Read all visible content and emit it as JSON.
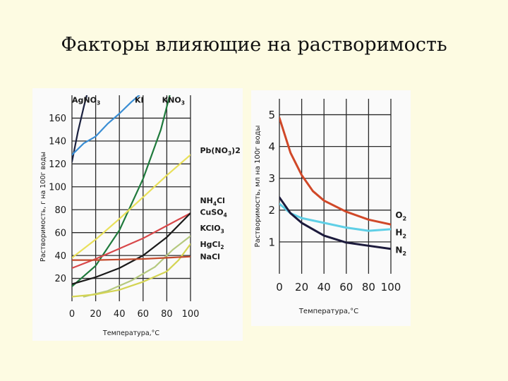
{
  "slide": {
    "title": "Факторы влияющие на растворимость"
  },
  "chart_data": [
    {
      "type": "line",
      "ylabel": "Растворимость, г на 100г воды",
      "xlabel": "Температура,°C",
      "x_ticks": [
        "0",
        "20",
        "40",
        "60",
        "80",
        "100"
      ],
      "y_ticks": [
        "20",
        "40",
        "60",
        "80",
        "100",
        "120",
        "140",
        "160"
      ],
      "xlim": [
        0,
        100
      ],
      "ylim": [
        0,
        180
      ],
      "grid": true,
      "series": [
        {
          "name": "AgNO3",
          "label_main": "AgNO",
          "label_sub": "3",
          "label_post": "",
          "label_x": 0,
          "label_y": 176,
          "color": "#1c2240",
          "points": [
            [
              0,
              122
            ],
            [
              5,
              148
            ],
            [
              10,
              170
            ],
            [
              15,
              190
            ]
          ]
        },
        {
          "name": "KI",
          "label_main": "KI",
          "label_sub": "",
          "label_post": "",
          "label_x": 53,
          "label_y": 176,
          "color": "#3a8ed4",
          "points": [
            [
              0,
              128
            ],
            [
              10,
              138
            ],
            [
              20,
              144
            ],
            [
              30,
              155
            ],
            [
              40,
              164
            ],
            [
              50,
              174
            ],
            [
              60,
              183
            ]
          ]
        },
        {
          "name": "KNO3",
          "label_main": "KNO",
          "label_sub": "3",
          "label_post": "",
          "label_x": 76,
          "label_y": 176,
          "color": "#1f7a3c",
          "points": [
            [
              0,
              13
            ],
            [
              20,
              31
            ],
            [
              40,
              62
            ],
            [
              60,
              107
            ],
            [
              75,
              150
            ],
            [
              80,
              170
            ],
            [
              85,
              190
            ]
          ]
        },
        {
          "name": "Pb(NO3)2",
          "label_main": "Pb(NO",
          "label_sub": "3",
          "label_post": ")2",
          "label_x": 108,
          "label_y": 132,
          "color": "#e9e05a",
          "points": [
            [
              0,
              38
            ],
            [
              20,
              54
            ],
            [
              40,
              72
            ],
            [
              60,
              91
            ],
            [
              80,
              110
            ],
            [
              100,
              128
            ]
          ]
        },
        {
          "name": "NH4Cl",
          "label_main": "NH",
          "label_sub": "4",
          "label_post": "Cl",
          "label_x": 108,
          "label_y": 88,
          "color": "#d8484a",
          "points": [
            [
              0,
              29
            ],
            [
              20,
              37
            ],
            [
              40,
              46
            ],
            [
              60,
              55
            ],
            [
              80,
              66
            ],
            [
              100,
              77
            ]
          ]
        },
        {
          "name": "CuSO4",
          "label_main": "CuSO",
          "label_sub": "4",
          "label_post": "",
          "label_x": 108,
          "label_y": 78,
          "color": "#1a1a1a",
          "points": [
            [
              0,
              15
            ],
            [
              20,
              21
            ],
            [
              40,
              29
            ],
            [
              60,
              40
            ],
            [
              80,
              56
            ],
            [
              100,
              77
            ]
          ]
        },
        {
          "name": "KClO3",
          "label_main": "KClO",
          "label_sub": "3",
          "label_post": "",
          "label_x": 108,
          "label_y": 64,
          "color": "#b5c97e",
          "points": [
            [
              10,
              4
            ],
            [
              30,
              9
            ],
            [
              50,
              18
            ],
            [
              70,
              30
            ],
            [
              85,
              45
            ],
            [
              100,
              57
            ]
          ]
        },
        {
          "name": "HgCl2",
          "label_main": "HgCl",
          "label_sub": "2",
          "label_post": "",
          "label_x": 108,
          "label_y": 50,
          "color": "#d4d452",
          "points": [
            [
              0,
              4
            ],
            [
              20,
              6
            ],
            [
              40,
              10
            ],
            [
              60,
              17
            ],
            [
              80,
              26
            ],
            [
              90,
              36
            ],
            [
              100,
              50
            ]
          ]
        },
        {
          "name": "NaCl",
          "label_main": "NaCl",
          "label_sub": "",
          "label_post": "",
          "label_x": 108,
          "label_y": 39,
          "color": "#c44a2c",
          "points": [
            [
              0,
              36
            ],
            [
              20,
              36
            ],
            [
              40,
              36.5
            ],
            [
              60,
              37
            ],
            [
              80,
              38
            ],
            [
              100,
              39
            ]
          ]
        }
      ]
    },
    {
      "type": "line",
      "ylabel": "Растворимость, мл на 100г воды",
      "xlabel": "Температура,°C",
      "x_ticks": [
        "0",
        "20",
        "40",
        "60",
        "80",
        "100"
      ],
      "y_ticks": [
        "1",
        "2",
        "3",
        "4",
        "5"
      ],
      "xlim": [
        0,
        100
      ],
      "ylim": [
        0,
        5.5
      ],
      "grid": true,
      "series": [
        {
          "name": "O2",
          "label_main": "O",
          "label_sub": "2",
          "label_post": "",
          "label_x": 104,
          "label_y": 1.85,
          "color": "#d04828",
          "points": [
            [
              0,
              4.9
            ],
            [
              10,
              3.8
            ],
            [
              20,
              3.1
            ],
            [
              30,
              2.6
            ],
            [
              40,
              2.3
            ],
            [
              60,
              1.95
            ],
            [
              80,
              1.7
            ],
            [
              100,
              1.55
            ]
          ]
        },
        {
          "name": "H2",
          "label_main": "H",
          "label_sub": "2",
          "label_post": "",
          "label_x": 104,
          "label_y": 1.3,
          "color": "#5fcfe6",
          "points": [
            [
              0,
              2.2
            ],
            [
              10,
              1.9
            ],
            [
              20,
              1.75
            ],
            [
              40,
              1.6
            ],
            [
              60,
              1.45
            ],
            [
              80,
              1.35
            ],
            [
              100,
              1.4
            ]
          ]
        },
        {
          "name": "N2",
          "label_main": "N",
          "label_sub": "2",
          "label_post": "",
          "label_x": 104,
          "label_y": 0.75,
          "color": "#1c1a3c",
          "points": [
            [
              0,
              2.4
            ],
            [
              10,
              1.9
            ],
            [
              20,
              1.6
            ],
            [
              30,
              1.4
            ],
            [
              40,
              1.2
            ],
            [
              60,
              0.98
            ],
            [
              80,
              0.88
            ],
            [
              100,
              0.78
            ]
          ]
        }
      ]
    }
  ]
}
